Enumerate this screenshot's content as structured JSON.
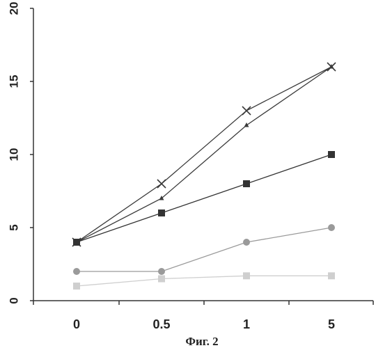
{
  "chart_data": {
    "type": "line",
    "title": "",
    "caption": "Фиг. 2",
    "xlabel": "",
    "ylabel": "",
    "categories": [
      "0",
      "0.5",
      "1",
      "5"
    ],
    "ylim": [
      0,
      20
    ],
    "yticks": [
      "0",
      "5",
      "10",
      "15",
      "20"
    ],
    "grid": false,
    "legend": "none",
    "series": [
      {
        "marker": "cross",
        "color": "#3a3a3a",
        "values": [
          4,
          8,
          13,
          16
        ]
      },
      {
        "marker": "triangle",
        "color": "#3a3a3a",
        "values": [
          4,
          7,
          12,
          16
        ]
      },
      {
        "marker": "square",
        "color": "#333333",
        "values": [
          4,
          6,
          8,
          10
        ]
      },
      {
        "marker": "circle",
        "color": "#9a9a9a",
        "values": [
          2,
          2,
          4,
          5
        ]
      },
      {
        "marker": "square",
        "color": "#cfcfcf",
        "values": [
          1,
          1.5,
          1.7,
          1.7
        ]
      }
    ]
  }
}
